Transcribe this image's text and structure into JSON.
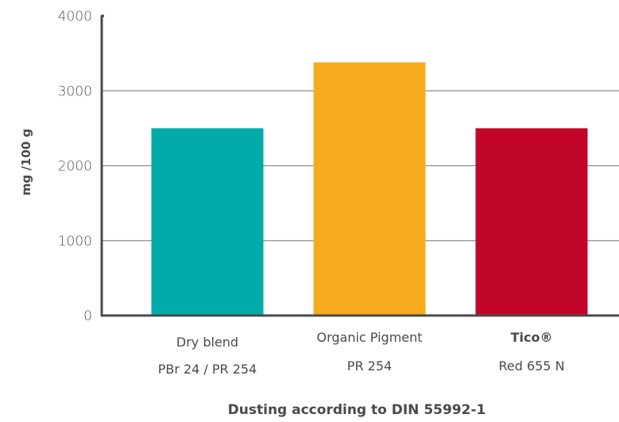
{
  "chart_data": {
    "type": "bar",
    "categories": [
      {
        "lines": [
          "Dry blend",
          "PBr 24 / PR 254"
        ]
      },
      {
        "lines": [
          "Organic Pigment",
          "PR 254"
        ]
      },
      {
        "lines": [
          "Tico®",
          "Red 655 N"
        ]
      }
    ],
    "values": [
      2500,
      3380,
      2500
    ],
    "colors": [
      "#00aba9",
      "#f6ab1f",
      "#c10629"
    ],
    "ylabel": "mg /100 g",
    "xlabel": "Dusting according to DIN 55992-1",
    "yticks": [
      0,
      1000,
      2000,
      3000,
      4000
    ],
    "ylim": [
      0,
      4000
    ],
    "grid": true
  }
}
